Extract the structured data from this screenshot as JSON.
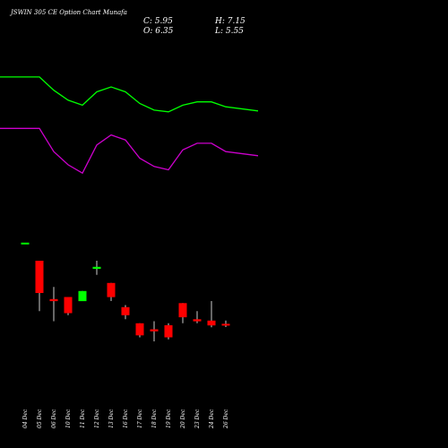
{
  "chart_data": {
    "type": "candlestick",
    "title": "JSWIN 305 CE Option Chart Munafa",
    "ohlc_summary": {
      "close_label": "C: 5.95",
      "high_label": "H: 7.15",
      "open_label": "O: 6.35",
      "low_label": "L: 5.55"
    },
    "categories": [
      "04 Dec",
      "05 Dec",
      "06 Dec",
      "10 Dec",
      "11 Dec",
      "12 Dec",
      "13 Dec",
      "16 Dec",
      "17 Dec",
      "18 Dec",
      "19 Dec",
      "20 Dec",
      "23 Dec",
      "24 Dec",
      "26 Dec"
    ],
    "candles": [
      {
        "open": 26.5,
        "high": 26.5,
        "low": 26.5,
        "close": 26.5
      },
      {
        "open": 22.0,
        "high": 22.0,
        "low": 9.5,
        "close": 14.0
      },
      {
        "open": 12.5,
        "high": 15.5,
        "low": 7.0,
        "close": 12.0
      },
      {
        "open": 13.0,
        "high": 13.0,
        "low": 8.5,
        "close": 9.0
      },
      {
        "open": 12.0,
        "high": 14.5,
        "low": 12.0,
        "close": 14.5
      },
      {
        "open": 20.0,
        "high": 22.0,
        "low": 18.5,
        "close": 20.5
      },
      {
        "open": 16.5,
        "high": 16.5,
        "low": 12.0,
        "close": 13.0
      },
      {
        "open": 10.5,
        "high": 11.0,
        "low": 7.5,
        "close": 8.5
      },
      {
        "open": 6.5,
        "high": 6.5,
        "low": 3.0,
        "close": 3.5
      },
      {
        "open": 5.0,
        "high": 7.0,
        "low": 2.0,
        "close": 4.5
      },
      {
        "open": 6.0,
        "high": 6.5,
        "low": 2.5,
        "close": 3.0
      },
      {
        "open": 11.5,
        "high": 11.5,
        "low": 6.5,
        "close": 8.0
      },
      {
        "open": 7.5,
        "high": 9.5,
        "low": 6.5,
        "close": 7.0
      },
      {
        "open": 7.15,
        "high": 12.0,
        "low": 5.5,
        "close": 5.95
      },
      {
        "open": 6.35,
        "high": 7.15,
        "low": 5.55,
        "close": 5.95
      }
    ],
    "series": [
      {
        "color": "#00ff00",
        "values": [
          86,
          86,
          78,
          72,
          69,
          77,
          80,
          77,
          70,
          66,
          65,
          69,
          71,
          71,
          68
        ]
      },
      {
        "color": "#cc00cc",
        "values": [
          55,
          55,
          41,
          33,
          28,
          45,
          51,
          48,
          37,
          32,
          30,
          42,
          46,
          46,
          41
        ]
      }
    ],
    "candle_ylim": [
      0,
      30
    ],
    "line_ylim": [
      0,
      100
    ],
    "colors": {
      "up": "#00ff00",
      "down": "#ff0000",
      "background": "#000000",
      "text": "#ffffff"
    },
    "grid": false,
    "legend": "none"
  }
}
